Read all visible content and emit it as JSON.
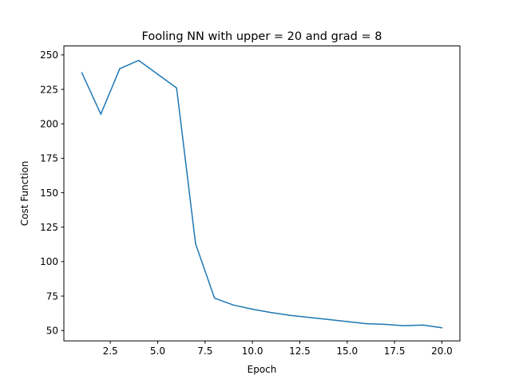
{
  "chart_data": {
    "type": "line",
    "title": "Fooling NN with upper = 20 and grad = 8",
    "xlabel": "Epoch",
    "ylabel": "Cost Function",
    "xlim": [
      0.05,
      20.95
    ],
    "ylim": [
      42.5,
      256.5
    ],
    "xticks": [
      2.5,
      5.0,
      7.5,
      10.0,
      12.5,
      15.0,
      17.5,
      20.0
    ],
    "xtick_labels": [
      "2.5",
      "5.0",
      "7.5",
      "10.0",
      "12.5",
      "15.0",
      "17.5",
      "20.0"
    ],
    "yticks": [
      50,
      75,
      100,
      125,
      150,
      175,
      200,
      225,
      250
    ],
    "ytick_labels": [
      "50",
      "75",
      "100",
      "125",
      "150",
      "175",
      "200",
      "225",
      "250"
    ],
    "grid": false,
    "series_color": "#1f77b4",
    "series": [
      {
        "x": [
          1,
          2,
          3,
          4,
          5,
          6,
          7,
          8,
          9,
          10,
          11,
          12,
          13,
          14,
          15,
          16,
          17,
          18,
          19,
          20
        ],
        "values": [
          237,
          207,
          240,
          246,
          236,
          226,
          113,
          73.5,
          68.5,
          65.5,
          63,
          61,
          59.5,
          58,
          56.5,
          55,
          54.5,
          53.5,
          54,
          52
        ]
      }
    ]
  }
}
